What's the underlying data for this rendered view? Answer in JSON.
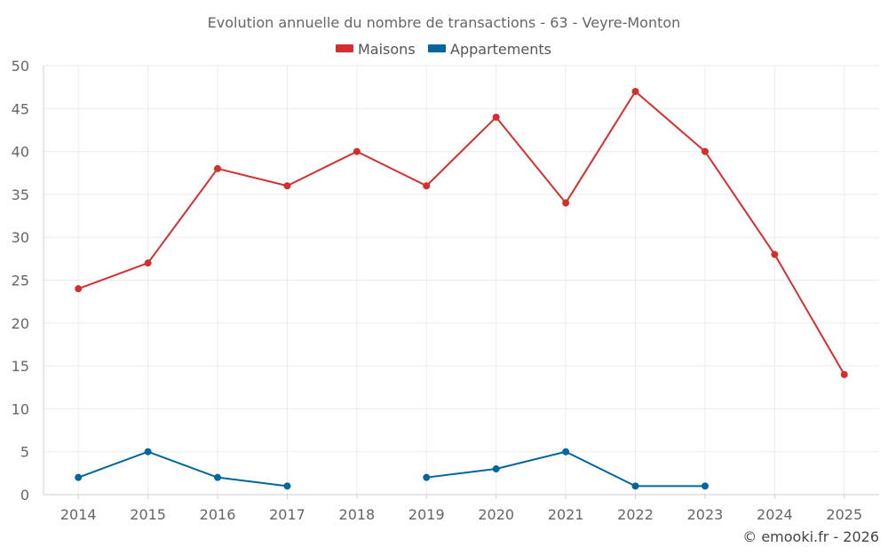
{
  "chart_data": {
    "type": "line",
    "title": "Evolution annuelle du nombre de transactions - 63 - Veyre-Monton",
    "categories": [
      "2014",
      "2015",
      "2016",
      "2017",
      "2018",
      "2019",
      "2020",
      "2021",
      "2022",
      "2023",
      "2024",
      "2025"
    ],
    "series": [
      {
        "name": "Maisons",
        "color": "#d32f2f",
        "values": [
          24,
          27,
          38,
          36,
          40,
          36,
          44,
          34,
          47,
          40,
          28,
          14
        ]
      },
      {
        "name": "Appartements",
        "color": "#01669b",
        "values": [
          2,
          5,
          2,
          1,
          null,
          2,
          3,
          5,
          1,
          1,
          null,
          null
        ]
      }
    ],
    "ylim": [
      0,
      50
    ],
    "yticks": [
      "0",
      "5",
      "10",
      "15",
      "20",
      "25",
      "30",
      "35",
      "40",
      "45",
      "50"
    ],
    "grid": true,
    "legend_position": "top-center",
    "credit": "© emooki.fr - 2026"
  }
}
